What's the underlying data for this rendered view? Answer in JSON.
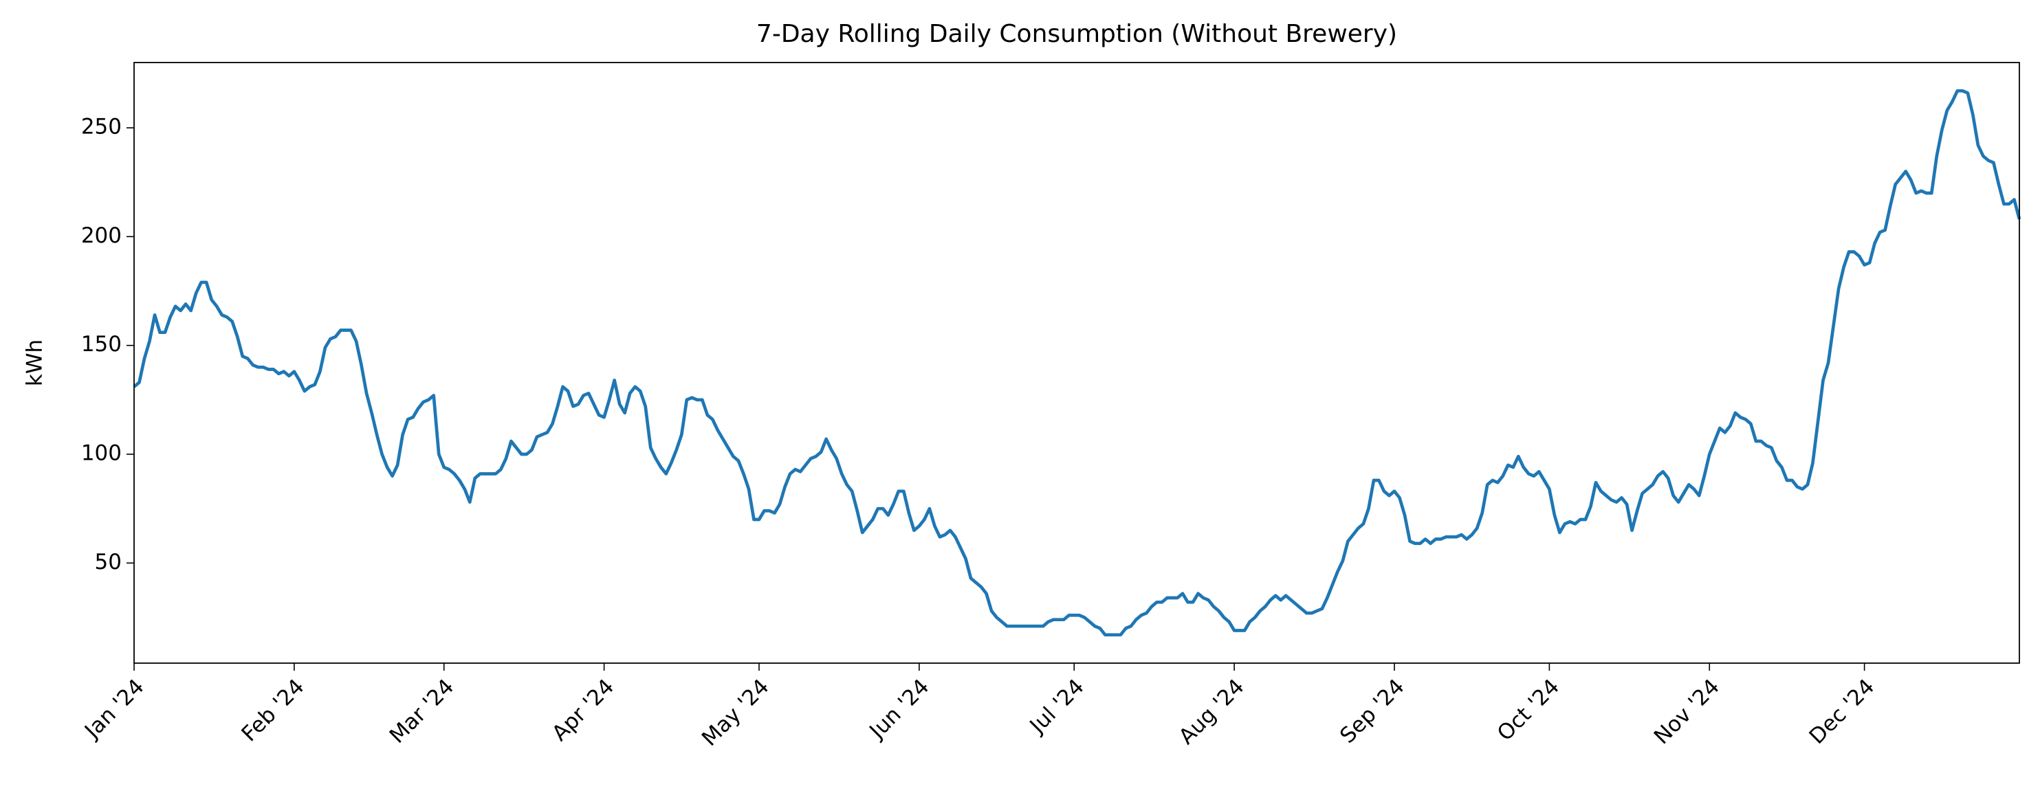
{
  "chart_data": {
    "type": "line",
    "title": "7-Day Rolling Daily Consumption (Without Brewery)",
    "ylabel": "kWh",
    "color": "#1f77b4",
    "x": [
      0,
      1,
      2,
      3,
      4,
      5,
      6,
      7,
      8,
      9,
      10,
      11,
      12,
      13,
      14,
      15,
      16,
      17,
      18,
      19,
      20,
      21,
      22,
      23,
      24,
      25,
      26,
      27,
      28,
      29,
      30,
      31,
      32,
      33,
      34,
      35,
      36,
      37,
      38,
      39,
      40,
      41,
      42,
      43,
      44,
      45,
      46,
      47,
      48,
      49,
      50,
      51,
      52,
      53,
      54,
      55,
      56,
      57,
      58,
      59,
      60,
      61,
      62,
      63,
      64,
      65,
      66,
      67,
      68,
      69,
      70,
      71,
      72,
      73,
      74,
      75,
      76,
      77,
      78,
      79,
      80,
      81,
      82,
      83,
      84,
      85,
      86,
      87,
      88,
      89,
      90,
      91,
      92,
      93,
      94,
      95,
      96,
      97,
      98,
      99,
      100,
      101,
      102,
      103,
      104,
      105,
      106,
      107,
      108,
      109,
      110,
      111,
      112,
      113,
      114,
      115,
      116,
      117,
      118,
      119,
      120,
      121,
      122,
      123,
      124,
      125,
      126,
      127,
      128,
      129,
      130,
      131,
      132,
      133,
      134,
      135,
      136,
      137,
      138,
      139,
      140,
      141,
      142,
      143,
      144,
      145,
      146,
      147,
      148,
      149,
      150,
      151,
      152,
      153,
      154,
      155,
      156,
      157,
      158,
      159,
      160,
      161,
      162,
      163,
      164,
      165,
      166,
      167,
      168,
      169,
      170,
      171,
      172,
      173,
      174,
      175,
      176,
      177,
      178,
      179,
      180,
      181,
      182,
      183,
      184,
      185,
      186,
      187,
      188,
      189,
      190,
      191,
      192,
      193,
      194,
      195,
      196,
      197,
      198,
      199,
      200,
      201,
      202,
      203,
      204,
      205,
      206,
      207,
      208,
      209,
      210,
      211,
      212,
      213,
      214,
      215,
      216,
      217,
      218,
      219,
      220,
      221,
      222,
      223,
      224,
      225,
      226,
      227,
      228,
      229,
      230,
      231,
      232,
      233,
      234,
      235,
      236,
      237,
      238,
      239,
      240,
      241,
      242,
      243,
      244,
      245,
      246,
      247,
      248,
      249,
      250,
      251,
      252,
      253,
      254,
      255,
      256,
      257,
      258,
      259,
      260,
      261,
      262,
      263,
      264,
      265,
      266,
      267,
      268,
      269,
      270,
      271,
      272,
      273,
      274,
      275,
      276,
      277,
      278,
      279,
      280,
      281,
      282,
      283,
      284,
      285,
      286,
      287,
      288,
      289,
      290,
      291,
      292,
      293,
      294,
      295,
      296,
      297,
      298,
      299,
      300,
      301,
      302,
      303,
      304,
      305,
      306,
      307,
      308,
      309,
      310,
      311,
      312,
      313,
      314,
      315,
      316,
      317,
      318,
      319,
      320,
      321,
      322,
      323,
      324,
      325,
      326,
      327,
      328,
      329,
      330,
      331,
      332,
      333,
      334,
      335,
      336,
      337,
      338,
      339,
      340,
      341,
      342,
      343,
      344,
      345,
      346,
      347,
      348,
      349,
      350,
      351,
      352,
      353,
      354,
      355,
      356,
      357,
      358,
      359,
      360,
      361,
      362,
      363,
      364,
      365
    ],
    "values": [
      131,
      133,
      144,
      152,
      164,
      156,
      156,
      163,
      168,
      166,
      169,
      166,
      174,
      179,
      179,
      171,
      168,
      164,
      163,
      161,
      154,
      145,
      144,
      141,
      140,
      140,
      139,
      139,
      137,
      138,
      136,
      138,
      134,
      129,
      131,
      132,
      138,
      149,
      153,
      154,
      157,
      157,
      157,
      152,
      141,
      128,
      119,
      109,
      100,
      94,
      90,
      95,
      109,
      116,
      117,
      121,
      124,
      125,
      127,
      100,
      94,
      93,
      91,
      88,
      84,
      78,
      89,
      91,
      91,
      91,
      91,
      93,
      98,
      106,
      103,
      100,
      100,
      102,
      108,
      109,
      110,
      114,
      122,
      131,
      129,
      122,
      123,
      127,
      128,
      123,
      118,
      117,
      125,
      134,
      123,
      119,
      128,
      131,
      129,
      122,
      103,
      98,
      94,
      91,
      96,
      102,
      109,
      125,
      126,
      125,
      125,
      118,
      116,
      111,
      107,
      103,
      99,
      97,
      91,
      84,
      70,
      70,
      74,
      74,
      73,
      77,
      85,
      91,
      93,
      92,
      95,
      98,
      99,
      101,
      107,
      102,
      98,
      91,
      86,
      83,
      74,
      64,
      67,
      70,
      75,
      75,
      72,
      77,
      83,
      83,
      73,
      65,
      67,
      70,
      75,
      67,
      62,
      63,
      65,
      62,
      57,
      52,
      43,
      41,
      39,
      36,
      28,
      25,
      23,
      21,
      21,
      21,
      21,
      21,
      21,
      21,
      21,
      23,
      24,
      24,
      24,
      26,
      26,
      26,
      25,
      23,
      21,
      20,
      17,
      17,
      17,
      17,
      20,
      21,
      24,
      26,
      27,
      30,
      32,
      32,
      34,
      34,
      34,
      36,
      32,
      32,
      36,
      34,
      33,
      30,
      28,
      25,
      23,
      19,
      19,
      19,
      23,
      25,
      28,
      30,
      33,
      35,
      33,
      35,
      33,
      31,
      29,
      27,
      27,
      28,
      29,
      34,
      40,
      46,
      51,
      60,
      63,
      66,
      68,
      75,
      88,
      88,
      83,
      81,
      83,
      80,
      72,
      60,
      59,
      59,
      61,
      59,
      61,
      61,
      62,
      62,
      62,
      63,
      61,
      63,
      66,
      73,
      86,
      88,
      87,
      90,
      95,
      94,
      99,
      94,
      91,
      90,
      92,
      88,
      84,
      72,
      64,
      68,
      69,
      68,
      70,
      70,
      76,
      87,
      83,
      81,
      79,
      78,
      80,
      77,
      65,
      74,
      82,
      84,
      86,
      90,
      92,
      89,
      81,
      78,
      82,
      86,
      84,
      81,
      90,
      100,
      106,
      112,
      110,
      113,
      119,
      117,
      116,
      114,
      106,
      106,
      104,
      103,
      97,
      94,
      88,
      88,
      85,
      84,
      86,
      96,
      115,
      134,
      142,
      159,
      176,
      186,
      193,
      193,
      191,
      187,
      188,
      197,
      202,
      203,
      214,
      224,
      227,
      230,
      226,
      220,
      221,
      220,
      220,
      237,
      249,
      258,
      262,
      267,
      267,
      266,
      256,
      242,
      237,
      235,
      234,
      224,
      215,
      215,
      217,
      208
    ],
    "xlim": [
      0,
      365
    ],
    "xticks": [
      {
        "value": 0,
        "label": "Jan '24"
      },
      {
        "value": 31,
        "label": "Feb '24"
      },
      {
        "value": 60,
        "label": "Mar '24"
      },
      {
        "value": 91,
        "label": "Apr '24"
      },
      {
        "value": 121,
        "label": "May '24"
      },
      {
        "value": 152,
        "label": "Jun '24"
      },
      {
        "value": 182,
        "label": "Jul '24"
      },
      {
        "value": 213,
        "label": "Aug '24"
      },
      {
        "value": 244,
        "label": "Sep '24"
      },
      {
        "value": 274,
        "label": "Oct '24"
      },
      {
        "value": 305,
        "label": "Nov '24"
      },
      {
        "value": 335,
        "label": "Dec '24"
      }
    ],
    "ylim": [
      4,
      280
    ],
    "yticks": [
      50,
      100,
      150,
      200,
      250
    ],
    "grid": false
  }
}
